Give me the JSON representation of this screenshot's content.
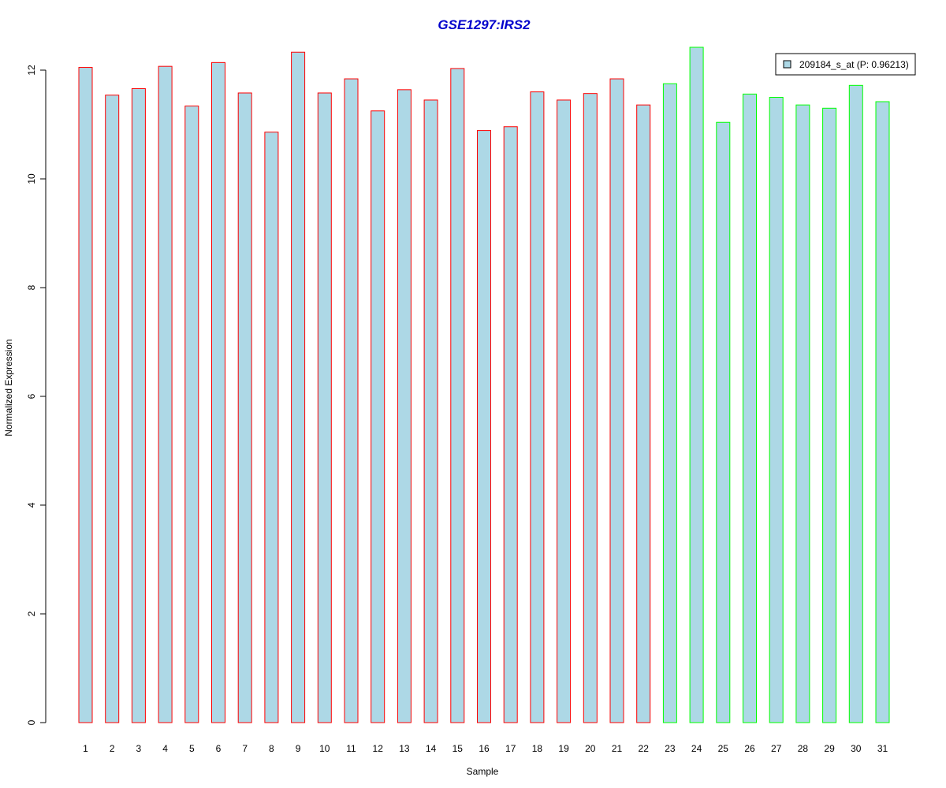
{
  "chart_data": {
    "type": "bar",
    "title": "GSE1297:IRS2",
    "xlabel": "Sample",
    "ylabel": "Normalized Expression",
    "ylim": [
      0,
      12.5
    ],
    "yticks": [
      "0",
      "2",
      "4",
      "6",
      "8",
      "10",
      "12"
    ],
    "categories": [
      "1",
      "2",
      "3",
      "4",
      "5",
      "6",
      "7",
      "8",
      "9",
      "10",
      "11",
      "12",
      "13",
      "14",
      "15",
      "16",
      "17",
      "18",
      "19",
      "20",
      "21",
      "22",
      "23",
      "24",
      "25",
      "26",
      "27",
      "28",
      "29",
      "30",
      "31"
    ],
    "values": [
      12.05,
      11.54,
      11.66,
      12.07,
      11.34,
      12.14,
      11.58,
      10.86,
      12.33,
      11.58,
      11.84,
      11.25,
      11.64,
      11.45,
      12.03,
      10.89,
      10.96,
      11.6,
      11.45,
      11.57,
      11.84,
      11.36,
      11.75,
      12.42,
      11.04,
      11.56,
      11.5,
      11.36,
      11.3,
      11.72,
      11.42
    ],
    "groups": [
      "red",
      "red",
      "red",
      "red",
      "red",
      "red",
      "red",
      "red",
      "red",
      "red",
      "red",
      "red",
      "red",
      "red",
      "red",
      "red",
      "red",
      "red",
      "red",
      "red",
      "red",
      "red",
      "green",
      "green",
      "green",
      "green",
      "green",
      "green",
      "green",
      "green",
      "green"
    ],
    "grid": false,
    "legend": {
      "placement": "top-right",
      "label": "209184_s_at (P: 0.96213)"
    },
    "colors": {
      "bar_fill": "#add8e6",
      "border_red": "#ff0000",
      "border_green": "#00ff00",
      "title": "#0000cc"
    }
  }
}
